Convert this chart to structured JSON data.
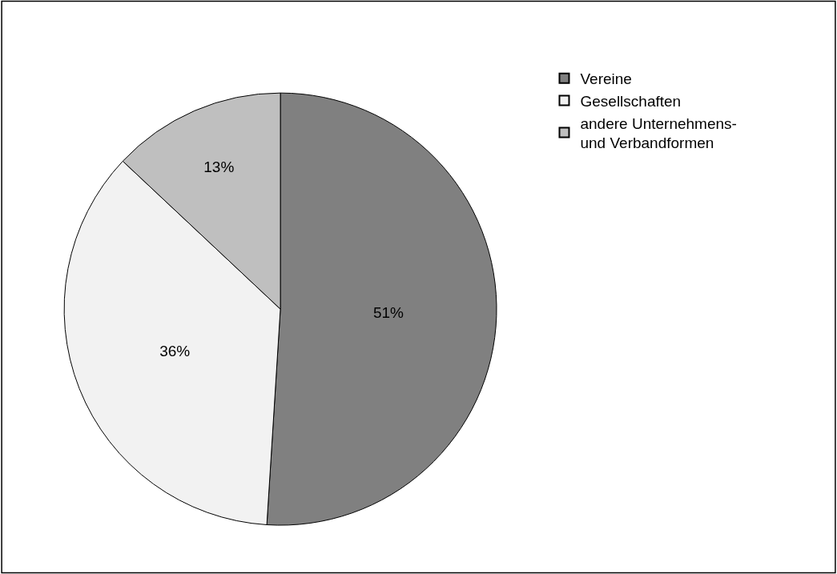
{
  "chart_data": {
    "type": "pie",
    "categories": [
      "Vereine",
      "Gesellschaften",
      "andere Unternehmens-\nund Verbandformen"
    ],
    "values": [
      51,
      36,
      13
    ],
    "colors": [
      "#808080",
      "#f2f2f2",
      "#bfbfbf"
    ],
    "value_labels": [
      "51%",
      "36%",
      "13%"
    ],
    "legend": "top right"
  }
}
